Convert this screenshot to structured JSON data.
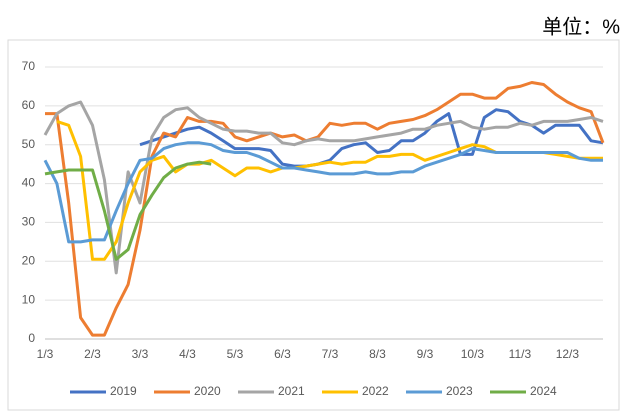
{
  "chart_data": {
    "type": "line",
    "title": "单位：%",
    "categories": [
      "1/3",
      null,
      null,
      null,
      "2/3",
      null,
      null,
      null,
      "3/3",
      null,
      null,
      null,
      "4/3",
      null,
      null,
      null,
      "5/3",
      null,
      null,
      null,
      "6/3",
      null,
      null,
      null,
      "7/3",
      null,
      null,
      null,
      "8/3",
      null,
      null,
      null,
      "9/3",
      null,
      null,
      null,
      "10/3",
      null,
      null,
      null,
      "11/3",
      null,
      null,
      null,
      "12/3",
      null,
      null,
      null
    ],
    "ylim": [
      0,
      70
    ],
    "yticks": [
      0,
      10,
      20,
      30,
      40,
      50,
      60,
      70
    ],
    "grid": true,
    "legend": "bottom",
    "series": [
      {
        "name": "2019",
        "color": "#4472c4",
        "values": [
          null,
          null,
          null,
          null,
          null,
          null,
          null,
          null,
          50,
          51,
          52,
          53,
          54,
          54.5,
          53,
          51,
          49,
          49,
          49,
          48.5,
          45,
          44.5,
          44.5,
          45,
          46,
          49,
          50,
          50.5,
          48,
          48.5,
          51,
          51,
          53,
          56,
          58,
          47.5,
          47.5,
          57,
          59,
          58.5,
          56,
          55,
          53,
          55,
          55,
          55,
          51,
          50.5
        ]
      },
      {
        "name": "2020",
        "color": "#ed7d31",
        "values": [
          58,
          58,
          35,
          5.5,
          1,
          1,
          8,
          14,
          28,
          47,
          53,
          52,
          57,
          56,
          56,
          55.5,
          52,
          51,
          52,
          53,
          52,
          52.5,
          51,
          52,
          55.5,
          55,
          55.5,
          55.5,
          54,
          55.5,
          56,
          56.5,
          57.5,
          59,
          61,
          63,
          63,
          62,
          62,
          64.5,
          65,
          66,
          65.5,
          63,
          61,
          59.5,
          58.5,
          50.5
        ]
      },
      {
        "name": "2021",
        "color": "#a5a5a5",
        "values": [
          52.5,
          58,
          60,
          61,
          55,
          41,
          17,
          43,
          35,
          52,
          57,
          59,
          59.5,
          57,
          55.5,
          54,
          53.5,
          53.5,
          53,
          53,
          50.5,
          50,
          51,
          51.5,
          51,
          51,
          51,
          51.5,
          52,
          52.5,
          53,
          54,
          54,
          55,
          55.5,
          56,
          54.5,
          54,
          54.5,
          54.5,
          55.5,
          55,
          56,
          56,
          56,
          56.5,
          57,
          56
        ]
      },
      {
        "name": "2022",
        "color": "#ffc000",
        "values": [
          null,
          56,
          55,
          47,
          20.5,
          20.5,
          25,
          35,
          43,
          46,
          47,
          43,
          45,
          45,
          46,
          44,
          42,
          44,
          44,
          43,
          44,
          44,
          44.5,
          45,
          45.5,
          45,
          45.5,
          45.5,
          47,
          47,
          47.5,
          47.5,
          46,
          47,
          48,
          49,
          50,
          49.5,
          48,
          48,
          48,
          48,
          48,
          47.5,
          47,
          46.5,
          46.5,
          46.5
        ]
      },
      {
        "name": "2023",
        "color": "#5b9bd5",
        "values": [
          46,
          40,
          25,
          25,
          25.5,
          25.5,
          33,
          40,
          46,
          46.5,
          49,
          50,
          50.5,
          50.5,
          50,
          48.5,
          48,
          48,
          47,
          45.5,
          44,
          44,
          43.5,
          43,
          42.5,
          42.5,
          42.5,
          43,
          42.5,
          42.5,
          43,
          43,
          44.5,
          45.5,
          46.5,
          47.5,
          49,
          48.5,
          48,
          48,
          48,
          48,
          48,
          48,
          48,
          46.5,
          46,
          46
        ]
      },
      {
        "name": "2024",
        "color": "#70ad47",
        "values": [
          42.5,
          43,
          43.5,
          43.5,
          43.5,
          33,
          20.5,
          23,
          32,
          37,
          41.5,
          44,
          45,
          45.5,
          45,
          null,
          null,
          null,
          null,
          null,
          null,
          null,
          null,
          null,
          null,
          null,
          null,
          null,
          null,
          null,
          null,
          null,
          null,
          null,
          null,
          null,
          null,
          null,
          null,
          null,
          null,
          null,
          null,
          null,
          null,
          null,
          null,
          null
        ]
      }
    ]
  }
}
